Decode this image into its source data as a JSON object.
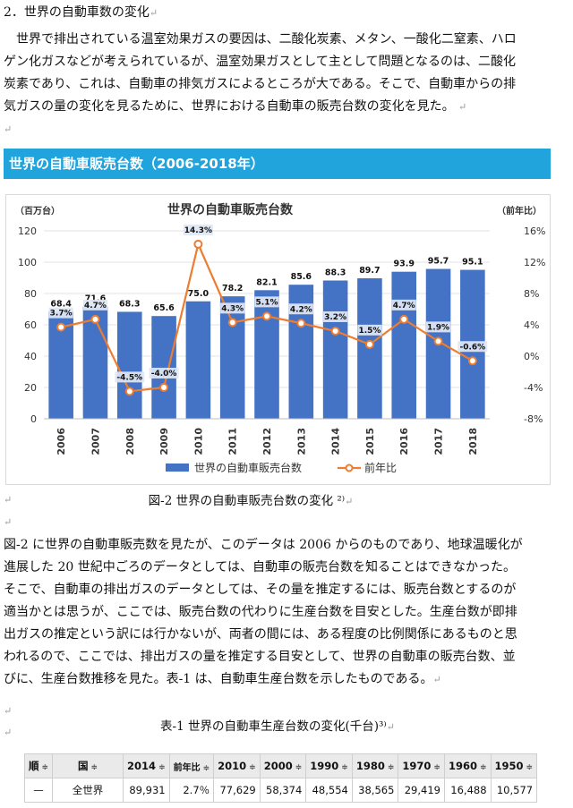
{
  "section": {
    "heading": "2．世界の自動車数の変化"
  },
  "para1_lines": [
    "　世界で排出されている温室効果ガスの要因は、二酸化炭素、メタン、一酸化二窒素、ハロ",
    "ゲン化ガスなどが考えられているが、温室効果ガスとして主として問題となるのは、二酸化",
    "炭素であり、これは、自動車の排気ガスによるところが大である。そこで、自動車からの排",
    "気ガスの量の変化を見るために、世界における自動車の販売台数の変化を見た。"
  ],
  "return_mark": "↵",
  "banner": {
    "title": "世界の自動車販売台数（2006-2018年）"
  },
  "chart_data": {
    "type": "bar",
    "title": "世界の自動車販売台数",
    "categories": [
      "2006",
      "2007",
      "2008",
      "2009",
      "2010",
      "2011",
      "2012",
      "2013",
      "2014",
      "2015",
      "2016",
      "2017",
      "2018"
    ],
    "series": [
      {
        "name": "世界の自動車販売台数",
        "values": [
          68.4,
          71.6,
          68.3,
          65.6,
          75.0,
          78.2,
          82.1,
          85.6,
          88.3,
          89.7,
          93.9,
          95.7,
          95.1
        ],
        "labels": [
          "68.4",
          "71.6",
          "68.3",
          "65.6",
          "75.0",
          "78.2",
          "82.1",
          "85.6",
          "88.3",
          "89.7",
          "93.9",
          "95.7",
          "95.1"
        ],
        "color": "#4472c4"
      },
      {
        "name": "前年比",
        "values": [
          3.7,
          4.7,
          -4.5,
          -4.0,
          14.3,
          4.3,
          5.1,
          4.2,
          3.2,
          1.5,
          4.7,
          1.9,
          -0.6
        ],
        "labels": [
          "3.7%",
          "4.7%",
          "-4.5%",
          "-4.0%",
          "14.3%",
          "4.3%",
          "5.1%",
          "4.2%",
          "3.2%",
          "1.5%",
          "4.7%",
          "1.9%",
          "-0.6%"
        ],
        "color": "#ed7d31"
      }
    ],
    "ylabel_left": "（百万台）",
    "ylabel_right": "（前年比）",
    "ylim_left": [
      0,
      120
    ],
    "ylim_right": [
      -8,
      16
    ],
    "yticks_left": [
      "0",
      "20",
      "40",
      "60",
      "80",
      "100",
      "120"
    ],
    "yticks_right": [
      "-8%",
      "-4%",
      "0%",
      "4%",
      "8%",
      "12%",
      "16%"
    ],
    "legend_position": "bottom"
  },
  "figure_caption": "図-2 世界の自動車販売台数の変化 ²⁾",
  "para2_lines": [
    "図-2 に世界の自動車販売数を見たが、このデータは 2006 からのものであり、地球温暖化が",
    "進展した 20 世紀中ごろのデータとしては、自動車の販売台数を知ることはできなかった。",
    "そこで、自動車の排出ガスのデータとしては、その量を推定するには、販売台数とするのが",
    "適当かとは思うが、ここでは、販売台数の代わりに生産台数を目安とした。生産台数が即排",
    "出ガスの推定という訳には行かないが、両者の間には、ある程度の比例関係にあるものと思",
    "われるので、ここでは、排出ガスの量を推定する目安として、世界の自動車の販売台数、並",
    "びに、生産台数推移を見た。表-1 は、自動車生産台数を示したものである。"
  ],
  "table_caption": "表-1 世界の自動車生産台数の変化(千台)³⁾",
  "table": {
    "sort_icon": "≑",
    "headers": [
      "順",
      "国",
      "2014",
      "前年比",
      "2010",
      "2000",
      "1990",
      "1980",
      "1970",
      "1960",
      "1950"
    ],
    "rows": [
      [
        "—",
        "全世界",
        "89,931",
        "2.7％",
        "77,629",
        "58,374",
        "48,554",
        "38,565",
        "29,419",
        "16,488",
        "10,577"
      ]
    ]
  }
}
